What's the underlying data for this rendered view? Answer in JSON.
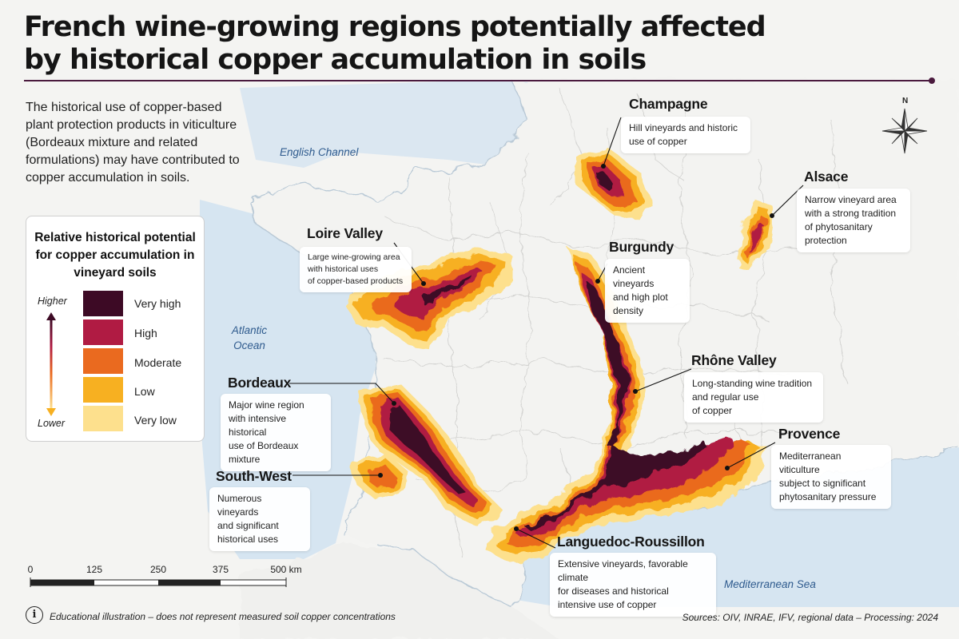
{
  "title": {
    "line1": "French wine-growing regions potentially affected",
    "line2": "by historical copper accumulation in soils"
  },
  "intro": "The historical use of copper-based plant protection products in viticulture (Bordeaux mixture and related formulations) may have contributed to copper accumulation in soils.",
  "legend": {
    "title": "Relative historical potential for copper accumulation in vineyard soils",
    "higher_label": "Higher",
    "lower_label": "Lower",
    "classes": [
      {
        "label": "Very high",
        "color": "#3d0a25"
      },
      {
        "label": "High",
        "color": "#b01b43"
      },
      {
        "label": "Moderate",
        "color": "#ea6a1f"
      },
      {
        "label": "Low",
        "color": "#f7b021"
      },
      {
        "label": "Very low",
        "color": "#fde08d"
      }
    ]
  },
  "seas": {
    "english_channel": "English Channel",
    "atlantic_line1": "Atlantic",
    "atlantic_line2": "Ocean",
    "mediterranean": "Mediterranean Sea"
  },
  "regions": [
    {
      "name": "Champagne",
      "desc": [
        "Hill vineyards and historic",
        "use of copper"
      ]
    },
    {
      "name": "Alsace",
      "desc": [
        "Narrow vineyard area",
        "with a strong tradition",
        "of phytosanitary",
        "protection"
      ]
    },
    {
      "name": "Loire Valley",
      "desc": [
        "Large wine-growing area",
        "with historical uses",
        "of copper-based products"
      ]
    },
    {
      "name": "Burgundy",
      "desc": [
        "Ancient vineyards",
        "and high plot",
        "density"
      ]
    },
    {
      "name": "Rhône Valley",
      "desc": [
        "Long-standing wine tradition",
        "and regular use",
        "of copper"
      ]
    },
    {
      "name": "Bordeaux",
      "desc": [
        "Major wine region",
        "with intensive historical",
        "use of Bordeaux",
        "mixture"
      ]
    },
    {
      "name": "Provence",
      "desc": [
        "Mediterranean viticulture",
        "subject to significant",
        "phytosanitary pressure"
      ]
    },
    {
      "name": "South-West",
      "desc": [
        "Numerous vineyards",
        "and significant",
        "historical uses"
      ]
    },
    {
      "name": "Languedoc-Roussillon",
      "desc": [
        "Extensive vineyards, favorable climate",
        "for diseases and historical",
        "intensive use of copper"
      ]
    }
  ],
  "compass": {
    "north": "N"
  },
  "scale": {
    "labels": [
      "0",
      "125",
      "250",
      "375",
      "500 km"
    ]
  },
  "note": {
    "icon": "i",
    "text": "Educational illustration – does not represent measured soil copper concentrations"
  },
  "sources": "Sources: OIV, INRAE, IFV, regional data – Processing: 2024",
  "colors": {
    "sea": "#dbe7f1",
    "land": "#f3f3f1",
    "accent": "#4a1a3e"
  }
}
